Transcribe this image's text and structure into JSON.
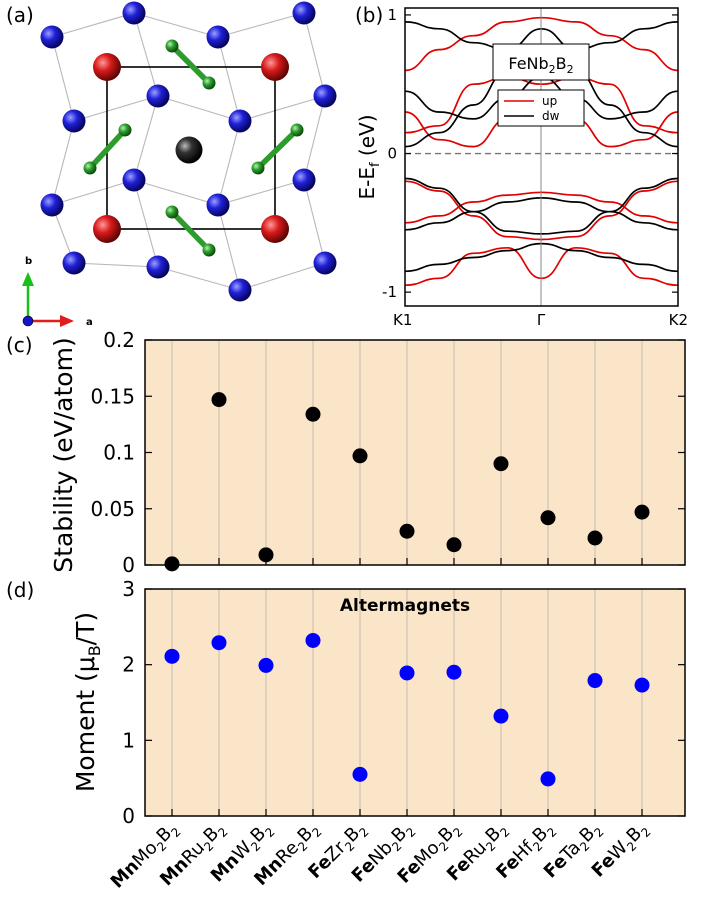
{
  "panels": {
    "a": {
      "label": "(a)",
      "axis_b": "b",
      "axis_a": "a"
    },
    "b": {
      "label": "(b)"
    },
    "c": {
      "label": "(c)"
    },
    "d": {
      "label": "(d)"
    }
  },
  "colors": {
    "fe_atom": "#1a1a1a",
    "nb_atom": "#1515c8",
    "mn_atom": "#cc1414",
    "b_atom": "#2d9c2d",
    "band_up": "#e00000",
    "band_dw": "#000000",
    "panel_bg": "#fbe5c8",
    "marker_stability": "#000000",
    "marker_moment": "#0000ff"
  },
  "chart_data": [
    {
      "panel": "b",
      "type": "line",
      "title": "FeNb2B2",
      "ylabel": "E-Ef (eV)",
      "xticks": [
        "K1",
        "Γ",
        "K2"
      ],
      "ylim": [
        -1.1,
        1.05
      ],
      "yticks": [
        -1,
        0,
        1
      ],
      "legend": {
        "placement": "top-right",
        "entries": [
          "up",
          "dw"
        ]
      },
      "fermi_level": 0,
      "x": [
        0,
        0.125,
        0.25,
        0.375,
        0.5,
        0.625,
        0.75,
        0.875,
        1
      ],
      "series": [
        {
          "name": "up",
          "values": [
            -0.2,
            -0.27,
            -0.45,
            -0.6,
            -0.62,
            -0.6,
            -0.45,
            -0.27,
            -0.2
          ]
        },
        {
          "name": "up",
          "values": [
            -0.5,
            -0.45,
            -0.35,
            -0.3,
            -0.28,
            -0.3,
            -0.35,
            -0.45,
            -0.5
          ]
        },
        {
          "name": "up",
          "values": [
            -0.95,
            -0.9,
            -0.72,
            -0.68,
            -0.9,
            -0.68,
            -0.72,
            -0.9,
            -0.95
          ]
        },
        {
          "name": "up",
          "values": [
            0.15,
            0.2,
            0.5,
            0.55,
            0.5,
            0.55,
            0.5,
            0.2,
            0.15
          ]
        },
        {
          "name": "up",
          "values": [
            0.6,
            0.75,
            0.85,
            0.95,
            0.98,
            0.95,
            0.85,
            0.75,
            0.6
          ]
        },
        {
          "name": "up",
          "values": [
            0.3,
            0.1,
            0.05,
            0.25,
            0.45,
            0.25,
            0.05,
            0.1,
            0.3
          ]
        },
        {
          "name": "dw",
          "values": [
            -0.18,
            -0.25,
            -0.42,
            -0.56,
            -0.58,
            -0.56,
            -0.42,
            -0.25,
            -0.18
          ]
        },
        {
          "name": "dw",
          "values": [
            -0.55,
            -0.5,
            -0.42,
            -0.35,
            -0.32,
            -0.35,
            -0.42,
            -0.5,
            -0.55
          ]
        },
        {
          "name": "dw",
          "values": [
            -0.85,
            -0.8,
            -0.75,
            -0.7,
            -0.65,
            -0.7,
            -0.75,
            -0.8,
            -0.85
          ]
        },
        {
          "name": "dw",
          "values": [
            0.05,
            0.15,
            0.35,
            0.6,
            0.7,
            0.6,
            0.35,
            0.15,
            0.05
          ]
        },
        {
          "name": "dw",
          "values": [
            0.95,
            0.9,
            0.8,
            0.75,
            0.9,
            0.75,
            0.8,
            0.9,
            0.95
          ]
        },
        {
          "name": "dw",
          "values": [
            0.45,
            0.3,
            0.25,
            0.4,
            0.55,
            0.4,
            0.25,
            0.3,
            0.45
          ]
        }
      ]
    },
    {
      "panel": "c",
      "type": "scatter",
      "ylabel": "Stability (eV/atom)",
      "ylim": [
        0,
        0.2
      ],
      "yticks": [
        "0",
        "0.05",
        "0.1",
        "0.15",
        "0.2"
      ],
      "categories": [
        "MnMo2B2",
        "MnRu2B2",
        "MnW2B2",
        "MnRe2B2",
        "FeZr2B2",
        "FeNb2B2",
        "FeMo2B2",
        "FeRu2B2",
        "FeHf2B2",
        "FeTa2B2",
        "FeW2B2"
      ],
      "values": [
        0.001,
        0.147,
        0.009,
        0.134,
        0.097,
        0.03,
        0.018,
        0.09,
        0.042,
        0.024,
        0.047
      ]
    },
    {
      "panel": "d",
      "type": "scatter",
      "title": "Altermagnets",
      "ylabel": "Moment (μB/T)",
      "ylim": [
        0,
        3
      ],
      "yticks": [
        "0",
        "1",
        "2",
        "3"
      ],
      "categories": [
        "MnMo2B2",
        "MnRu2B2",
        "MnW2B2",
        "MnRe2B2",
        "FeZr2B2",
        "FeNb2B2",
        "FeMo2B2",
        "FeRu2B2",
        "FeHf2B2",
        "FeTa2B2",
        "FeW2B2"
      ],
      "category_labels": [
        {
          "metal": "Mn",
          "rest": "Mo",
          "sub1": "2",
          "mid": "B",
          "sub2": "2"
        },
        {
          "metal": "Mn",
          "rest": "Ru",
          "sub1": "2",
          "mid": "B",
          "sub2": "2"
        },
        {
          "metal": "Mn",
          "rest": "W",
          "sub1": "2",
          "mid": "B",
          "sub2": "2"
        },
        {
          "metal": "Mn",
          "rest": "Re",
          "sub1": "2",
          "mid": "B",
          "sub2": "2"
        },
        {
          "metal": "Fe",
          "rest": "Zr",
          "sub1": "2",
          "mid": "B",
          "sub2": "2"
        },
        {
          "metal": "Fe",
          "rest": "Nb",
          "sub1": "2",
          "mid": "B",
          "sub2": "2"
        },
        {
          "metal": "Fe",
          "rest": "Mo",
          "sub1": "2",
          "mid": "B",
          "sub2": "2"
        },
        {
          "metal": "Fe",
          "rest": "Ru",
          "sub1": "2",
          "mid": "B",
          "sub2": "2"
        },
        {
          "metal": "Fe",
          "rest": "Hf",
          "sub1": "2",
          "mid": "B",
          "sub2": "2"
        },
        {
          "metal": "Fe",
          "rest": "Ta",
          "sub1": "2",
          "mid": "B",
          "sub2": "2"
        },
        {
          "metal": "Fe",
          "rest": "W",
          "sub1": "2",
          "mid": "B",
          "sub2": "2"
        }
      ],
      "values": [
        2.11,
        2.29,
        1.99,
        2.32,
        0.55,
        1.89,
        1.9,
        1.32,
        0.49,
        1.79,
        1.73
      ]
    }
  ]
}
